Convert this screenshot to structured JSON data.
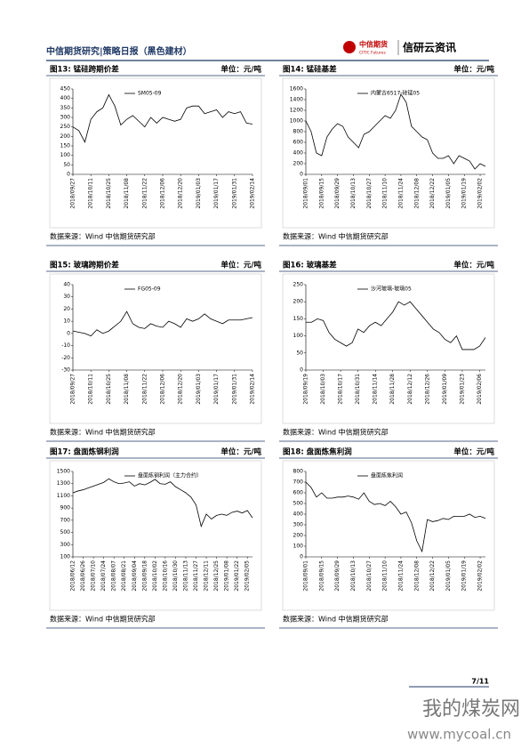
{
  "header": {
    "title": "中信期货研究|策略日报（黑色建材）",
    "logo_cn": "中信期货",
    "logo_en": "CITIC Futures",
    "brand": "信研云资讯"
  },
  "footer": {
    "page": "7/11"
  },
  "watermark": {
    "cn": "我的煤炭网",
    "url": "www.mycoal.cn"
  },
  "chart_data": [
    {
      "type": "line",
      "figure_label": "图13: 锰硅跨期价差",
      "unit": "单位：元/吨",
      "source": "数据来源：Wind  中信期货研究部",
      "categories": [
        "2018/09/27",
        null,
        null,
        "2018/10/11",
        null,
        null,
        "2018/10/25",
        null,
        null,
        "2018/11/08",
        null,
        null,
        "2018/11/22",
        null,
        null,
        "2018/12/06",
        null,
        null,
        "2018/12/20",
        null,
        null,
        "2019/01/03",
        null,
        null,
        "2019/01/17",
        null,
        null,
        "2019/01/31",
        null,
        null,
        "2019/02/14"
      ],
      "series": [
        {
          "name": "SM05-09",
          "color": "#000000",
          "values": [
            250,
            230,
            170,
            290,
            330,
            350,
            420,
            360,
            260,
            290,
            310,
            280,
            250,
            300,
            270,
            300,
            290,
            280,
            290,
            350,
            360,
            360,
            320,
            330,
            340,
            300,
            330,
            320,
            330,
            270,
            265
          ]
        }
      ],
      "ylim": [
        0,
        450
      ],
      "yticks": [
        0,
        50,
        100,
        150,
        200,
        250,
        300,
        350,
        400,
        450
      ]
    },
    {
      "type": "line",
      "figure_label": "图14: 锰硅基差",
      "unit": "单位：元/吨",
      "source": "数据来源：Wind  中信期货研究部",
      "categories": [
        "2018/09/01",
        null,
        null,
        "2018/09/15",
        null,
        null,
        "2018/09/29",
        null,
        null,
        "2018/10/13",
        null,
        null,
        "2018/10/27",
        null,
        null,
        "2018/11/10",
        null,
        null,
        "2018/11/24",
        null,
        null,
        "2018/12/08",
        null,
        null,
        "2018/12/22",
        null,
        null,
        "2019/01/05",
        null,
        null,
        "2019/01/19",
        null,
        null,
        "2019/02/02",
        null
      ],
      "series": [
        {
          "name": "内蒙古6517-硅锰05",
          "color": "#000000",
          "values": [
            1000,
            800,
            400,
            350,
            700,
            850,
            950,
            900,
            700,
            600,
            500,
            750,
            800,
            900,
            1000,
            1100,
            1050,
            1200,
            1500,
            1350,
            900,
            800,
            700,
            650,
            400,
            300,
            300,
            350,
            200,
            350,
            300,
            250,
            100,
            200,
            150
          ]
        }
      ],
      "ylim": [
        0,
        1600
      ],
      "yticks": [
        0,
        200,
        400,
        600,
        800,
        1000,
        1200,
        1400,
        1600
      ]
    },
    {
      "type": "line",
      "figure_label": "图15: 玻璃跨期价差",
      "unit": "单位：元/吨",
      "source": "数据来源：Wind  中信期货研究部",
      "categories": [
        "2018/09/27",
        null,
        null,
        "2018/10/11",
        null,
        null,
        "2018/10/25",
        null,
        null,
        "2018/11/08",
        null,
        null,
        "2018/11/22",
        null,
        null,
        "2018/12/06",
        null,
        null,
        "2018/12/20",
        null,
        null,
        "2019/01/03",
        null,
        null,
        "2019/01/17",
        null,
        null,
        "2019/01/31",
        null,
        null,
        "2019/02/14"
      ],
      "series": [
        {
          "name": "FG05-09",
          "color": "#000000",
          "values": [
            2,
            1,
            0,
            -2,
            3,
            0,
            2,
            6,
            10,
            18,
            8,
            5,
            4,
            8,
            6,
            5,
            10,
            8,
            5,
            12,
            10,
            12,
            16,
            12,
            10,
            8,
            11,
            11,
            11,
            12,
            13
          ]
        }
      ],
      "ylim": [
        -30,
        40
      ],
      "yticks": [
        -30,
        -20,
        -10,
        0,
        10,
        20,
        30,
        40
      ]
    },
    {
      "type": "line",
      "figure_label": "图16: 玻璃基差",
      "unit": "单位：元/吨",
      "source": "数据来源：Wind  中信期货研究部",
      "categories": [
        "2018/09/19",
        null,
        null,
        "2018/10/03",
        null,
        null,
        "2018/10/17",
        null,
        null,
        "2018/10/31",
        null,
        null,
        "2018/11/14",
        null,
        null,
        "2018/11/28",
        null,
        null,
        "2018/12/12",
        null,
        null,
        "2018/12/26",
        null,
        null,
        "2019/01/09",
        null,
        null,
        "2019/01/23",
        null,
        null,
        "2019/02/06",
        null
      ],
      "series": [
        {
          "name": "沙河玻璃-玻璃05",
          "color": "#000000",
          "values": [
            140,
            140,
            150,
            145,
            110,
            90,
            80,
            70,
            80,
            120,
            110,
            130,
            140,
            130,
            150,
            170,
            200,
            190,
            200,
            180,
            160,
            140,
            120,
            110,
            90,
            80,
            100,
            60,
            60,
            60,
            70,
            95
          ]
        }
      ],
      "ylim": [
        0,
        250
      ],
      "yticks": [
        0,
        50,
        100,
        150,
        200,
        250
      ]
    },
    {
      "type": "line",
      "figure_label": "图17: 盘面炼钢利润",
      "unit": "单位：元/吨",
      "source": "数据来源：Wind  中信期货研究部",
      "categories": [
        "2018/06/12",
        null,
        "2018/06/26",
        null,
        "2018/07/10",
        null,
        "2018/07/24",
        null,
        "2018/08/07",
        null,
        "2018/08/21",
        null,
        "2018/09/04",
        null,
        "2018/09/18",
        null,
        "2018/10/02",
        null,
        "2018/10/16",
        null,
        "2018/10/30",
        null,
        "2018/11/13",
        null,
        "2018/11/27",
        null,
        "2018/12/11",
        null,
        "2018/12/25",
        null,
        "2019/01/08",
        null,
        "2019/01/22",
        null,
        "2019/02/05",
        null
      ],
      "series": [
        {
          "name": "盘面炼钢利润（主力合约）",
          "color": "#000000",
          "values": [
            1150,
            1180,
            1200,
            1230,
            1260,
            1290,
            1320,
            1380,
            1330,
            1300,
            1310,
            1330,
            1260,
            1300,
            1280,
            1320,
            1370,
            1300,
            1290,
            1330,
            1250,
            1200,
            1150,
            1080,
            950,
            600,
            800,
            720,
            780,
            800,
            780,
            830,
            850,
            820,
            860,
            740
          ]
        }
      ],
      "ylim": [
        100,
        1500
      ],
      "yticks": [
        100,
        300,
        500,
        700,
        900,
        1100,
        1300,
        1500
      ]
    },
    {
      "type": "line",
      "figure_label": "图18: 盘面炼焦利润",
      "unit": "单位：元/吨",
      "source": "数据来源：Wind  中信期货研究部",
      "categories": [
        "2018/09/01",
        null,
        null,
        "2018/09/15",
        null,
        null,
        "2018/09/29",
        null,
        null,
        "2018/10/13",
        null,
        null,
        "2018/10/27",
        null,
        null,
        "2018/11/10",
        null,
        null,
        "2018/11/24",
        null,
        null,
        "2018/12/08",
        null,
        null,
        "2018/12/22",
        null,
        null,
        "2019/01/05",
        null,
        null,
        "2019/01/19",
        null,
        null,
        "2019/02/02",
        null
      ],
      "series": [
        {
          "name": "盘面炼焦利润",
          "color": "#000000",
          "values": [
            700,
            650,
            560,
            600,
            550,
            550,
            560,
            560,
            570,
            560,
            540,
            600,
            520,
            490,
            500,
            480,
            520,
            470,
            400,
            420,
            320,
            150,
            50,
            350,
            330,
            340,
            360,
            350,
            380,
            380,
            380,
            400,
            370,
            380,
            360
          ]
        }
      ],
      "ylim": [
        0,
        800
      ],
      "yticks": [
        0,
        100,
        200,
        300,
        400,
        500,
        600,
        700,
        800
      ]
    }
  ]
}
